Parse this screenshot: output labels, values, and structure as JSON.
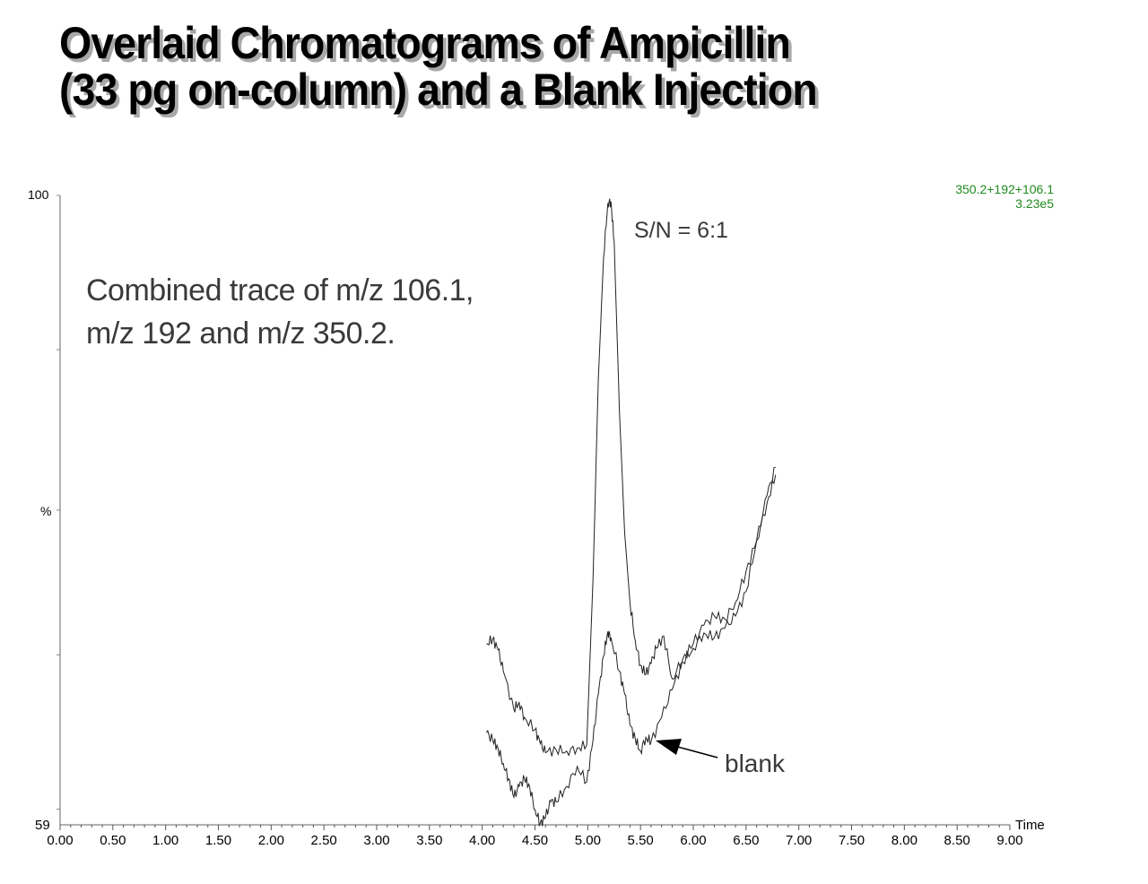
{
  "title": {
    "line1": "Overlaid Chromatograms of Ampicillin",
    "line2": "(33 pg on-column) and a Blank Injection"
  },
  "annotations": {
    "combined_line1": "Combined trace of m/z 106.1,",
    "combined_line2": "m/z 192 and m/z 350.2.",
    "sn": "S/N = 6:1",
    "blank": "blank"
  },
  "trace_info": {
    "channels": "350.2+192+106.1",
    "intensity": "3.23e5",
    "color": "#1f8a1f"
  },
  "axes": {
    "y_top": "100",
    "y_bottom": "59",
    "y_unit": "%",
    "x_unit": "Time",
    "x_ticks": [
      "0.00",
      "0.50",
      "1.00",
      "1.50",
      "2.00",
      "2.50",
      "3.00",
      "3.50",
      "4.00",
      "4.50",
      "5.00",
      "5.50",
      "6.00",
      "6.50",
      "7.00",
      "7.50",
      "8.00",
      "8.50",
      "9.00"
    ]
  },
  "chart_data": {
    "type": "line",
    "title": "Overlaid Chromatograms of Ampicillin (33 pg on-column) and a Blank Injection",
    "xlabel": "Time",
    "ylabel": "%",
    "xlim": [
      0.0,
      9.0
    ],
    "ylim": [
      59,
      100
    ],
    "grid": false,
    "legend": null,
    "annotations": [
      "Combined trace of m/z 106.1, m/z 192 and m/z 350.2.",
      "S/N = 6:1",
      "blank",
      "350.2+192+106.1",
      "3.23e5"
    ],
    "series": [
      {
        "name": "Ampicillin 33 pg",
        "x": [
          4.04,
          4.1,
          4.15,
          4.2,
          4.3,
          4.35,
          4.4,
          4.5,
          4.55,
          4.6,
          4.7,
          4.8,
          4.9,
          4.99,
          5.05,
          5.1,
          5.15,
          5.19,
          5.22,
          5.25,
          5.3,
          5.35,
          5.4,
          5.45,
          5.5,
          5.55,
          5.6,
          5.65,
          5.72,
          5.8,
          5.9,
          6.0,
          6.1,
          6.2,
          6.3,
          6.4,
          6.5,
          6.6,
          6.7,
          6.78
        ],
        "y": [
          70.8,
          71.1,
          70.4,
          69.0,
          66.5,
          67.0,
          66.0,
          65.2,
          64.3,
          63.7,
          63.9,
          63.8,
          64.0,
          64.2,
          75.0,
          88.0,
          96.0,
          99.5,
          99.6,
          97.0,
          86.0,
          78.0,
          73.5,
          71.0,
          69.4,
          68.8,
          69.5,
          70.5,
          71.3,
          68.5,
          69.8,
          70.8,
          72.0,
          72.6,
          72.4,
          73.5,
          75.5,
          77.5,
          80.5,
          82.3
        ]
      },
      {
        "name": "Blank",
        "x": [
          4.04,
          4.1,
          4.15,
          4.2,
          4.25,
          4.3,
          4.35,
          4.4,
          4.45,
          4.5,
          4.55,
          4.6,
          4.65,
          4.7,
          4.8,
          4.9,
          4.99,
          5.05,
          5.1,
          5.15,
          5.19,
          5.22,
          5.3,
          5.35,
          5.4,
          5.45,
          5.5,
          5.55,
          5.6,
          5.7,
          5.8,
          5.9,
          6.0,
          6.1,
          6.2,
          6.3,
          6.4,
          6.5,
          6.6,
          6.7,
          6.78
        ],
        "y": [
          65.0,
          64.5,
          64.0,
          63.0,
          62.0,
          60.8,
          61.5,
          62.0,
          61.5,
          60.0,
          59.1,
          59.5,
          60.5,
          60.5,
          61.5,
          62.8,
          61.8,
          64.5,
          67.5,
          70.0,
          71.6,
          71.2,
          69.0,
          67.5,
          65.5,
          64.6,
          63.8,
          64.7,
          64.4,
          66.0,
          67.8,
          69.6,
          70.5,
          71.5,
          71.2,
          71.8,
          72.6,
          74.2,
          77.5,
          80.0,
          81.8
        ]
      }
    ]
  }
}
